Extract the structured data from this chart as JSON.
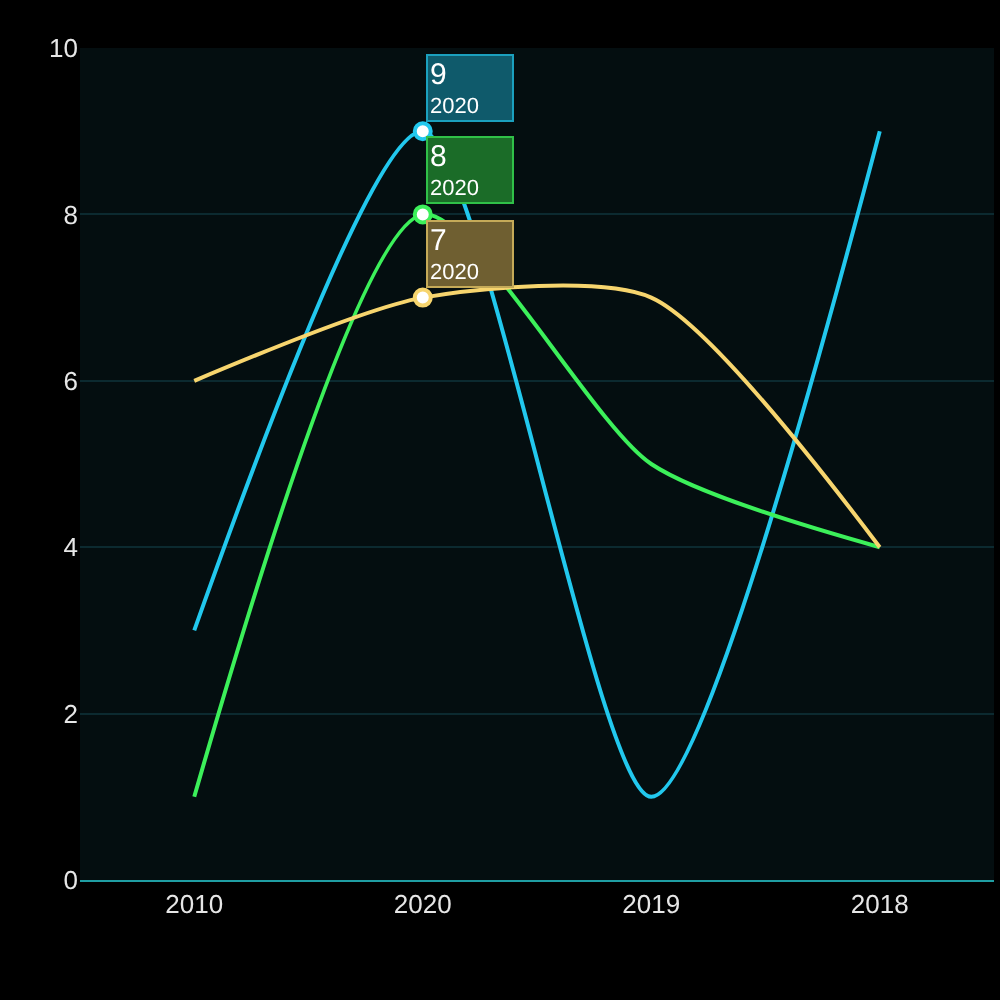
{
  "chart_data": {
    "type": "line",
    "categories": [
      "2010",
      "2020",
      "2019",
      "2018"
    ],
    "series": [
      {
        "color": "#22c8ee",
        "values": [
          3,
          9,
          1,
          9
        ]
      },
      {
        "color": "#3cf05a",
        "values": [
          1,
          8,
          5,
          4
        ]
      },
      {
        "color": "#f7d56e",
        "values": [
          6,
          7,
          7,
          4
        ]
      }
    ],
    "ylim": [
      0,
      10
    ],
    "yticks": [
      0,
      2,
      4,
      6,
      8,
      10
    ],
    "grid": "y",
    "annotations": [
      {
        "text": "9\n2020",
        "x": "2020",
        "y": 9
      },
      {
        "text": "8\n2020",
        "x": "2020",
        "y": 8
      },
      {
        "text": "7\n2020",
        "x": "2020",
        "y": 7
      }
    ]
  }
}
